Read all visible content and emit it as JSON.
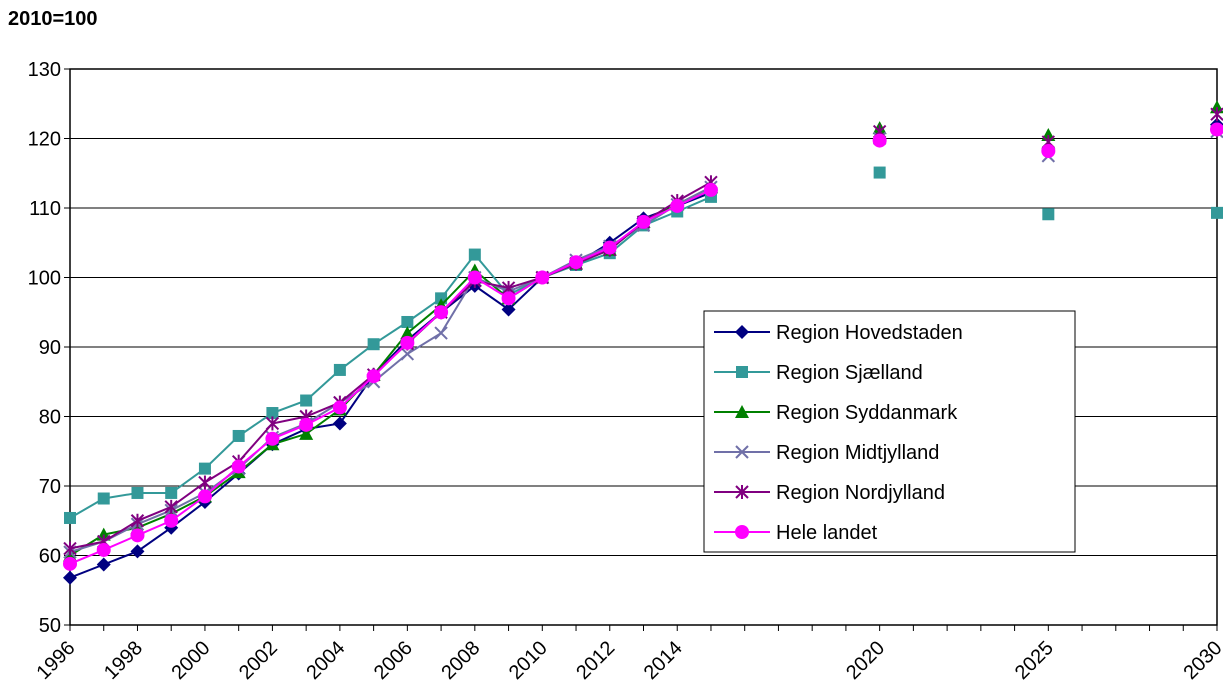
{
  "chart_data": {
    "type": "line",
    "title": "2010=100",
    "xlabel": "",
    "ylabel": "",
    "ylim": [
      50,
      130
    ],
    "yticks": [
      50,
      60,
      70,
      80,
      90,
      100,
      110,
      120,
      130
    ],
    "xlim": [
      1996,
      2030
    ],
    "xticks": [
      1996,
      1998,
      2000,
      2002,
      2004,
      2006,
      2008,
      2010,
      2012,
      2014,
      2020,
      2025,
      2030
    ],
    "grid": "horizontal",
    "legend_position": "center-right",
    "series": [
      {
        "name": "Region Hovedstaden",
        "color": "#000080",
        "marker": "diamond",
        "points": [
          [
            1996,
            56.8
          ],
          [
            1997,
            58.7
          ],
          [
            1998,
            60.6
          ],
          [
            1999,
            64.0
          ],
          [
            2000,
            67.7
          ],
          [
            2001,
            71.8
          ],
          [
            2002,
            76.0
          ],
          [
            2003,
            78.2
          ],
          [
            2004,
            79.0
          ],
          [
            2005,
            86.0
          ],
          [
            2006,
            91.0
          ],
          [
            2007,
            95.0
          ],
          [
            2008,
            98.8
          ],
          [
            2009,
            95.4
          ],
          [
            2010,
            100.0
          ],
          [
            2011,
            102.0
          ],
          [
            2012,
            105.0
          ],
          [
            2013,
            108.5
          ],
          [
            2014,
            110.3
          ],
          [
            2015,
            112.2
          ],
          [
            2020,
            119.8
          ],
          [
            2025,
            118.5
          ],
          [
            2030,
            122.0
          ]
        ]
      },
      {
        "name": "Region Sjælland",
        "color": "#339999",
        "marker": "square",
        "points": [
          [
            1996,
            65.4
          ],
          [
            1997,
            68.2
          ],
          [
            1998,
            69.0
          ],
          [
            1999,
            69.0
          ],
          [
            2000,
            72.5
          ],
          [
            2001,
            77.2
          ],
          [
            2002,
            80.5
          ],
          [
            2003,
            82.3
          ],
          [
            2004,
            86.7
          ],
          [
            2005,
            90.4
          ],
          [
            2006,
            93.6
          ],
          [
            2007,
            97.0
          ],
          [
            2008,
            103.3
          ],
          [
            2009,
            97.5
          ],
          [
            2010,
            100.0
          ],
          [
            2011,
            101.8
          ],
          [
            2012,
            103.5
          ],
          [
            2013,
            107.5
          ],
          [
            2014,
            109.5
          ],
          [
            2015,
            111.6
          ],
          [
            2020,
            115.1
          ],
          [
            2025,
            109.1
          ],
          [
            2030,
            109.3
          ]
        ]
      },
      {
        "name": "Region Syddanmark",
        "color": "#008000",
        "marker": "triangle",
        "points": [
          [
            1996,
            60.0
          ],
          [
            1997,
            63.0
          ],
          [
            1998,
            64.0
          ],
          [
            1999,
            66.0
          ],
          [
            2000,
            68.5
          ],
          [
            2001,
            72.0
          ],
          [
            2002,
            76.0
          ],
          [
            2003,
            77.5
          ],
          [
            2004,
            81.0
          ],
          [
            2005,
            86.0
          ],
          [
            2006,
            92.0
          ],
          [
            2007,
            96.0
          ],
          [
            2008,
            101.0
          ],
          [
            2009,
            97.0
          ],
          [
            2010,
            100.0
          ],
          [
            2011,
            102.0
          ],
          [
            2012,
            104.0
          ],
          [
            2013,
            108.0
          ],
          [
            2014,
            110.5
          ],
          [
            2015,
            113.0
          ],
          [
            2020,
            121.5
          ],
          [
            2025,
            120.5
          ],
          [
            2030,
            124.5
          ]
        ]
      },
      {
        "name": "Region Midtjylland",
        "color": "#7070A8",
        "marker": "x",
        "points": [
          [
            1996,
            60.5
          ],
          [
            1997,
            62.0
          ],
          [
            1998,
            64.5
          ],
          [
            1999,
            66.5
          ],
          [
            2000,
            69.0
          ],
          [
            2001,
            72.5
          ],
          [
            2002,
            77.0
          ],
          [
            2003,
            79.0
          ],
          [
            2004,
            82.0
          ],
          [
            2005,
            85.0
          ],
          [
            2006,
            89.0
          ],
          [
            2007,
            92.0
          ],
          [
            2008,
            100.0
          ],
          [
            2009,
            98.0
          ],
          [
            2010,
            100.0
          ],
          [
            2011,
            102.5
          ],
          [
            2012,
            104.5
          ],
          [
            2013,
            107.5
          ],
          [
            2014,
            110.5
          ],
          [
            2015,
            113.0
          ],
          [
            2020,
            120.0
          ],
          [
            2025,
            117.5
          ],
          [
            2030,
            121.0
          ]
        ]
      },
      {
        "name": "Region Nordjylland",
        "color": "#800080",
        "marker": "star",
        "points": [
          [
            1996,
            61.0
          ],
          [
            1997,
            62.0
          ],
          [
            1998,
            65.0
          ],
          [
            1999,
            67.0
          ],
          [
            2000,
            70.5
          ],
          [
            2001,
            73.5
          ],
          [
            2002,
            79.0
          ],
          [
            2003,
            80.0
          ],
          [
            2004,
            82.0
          ],
          [
            2005,
            86.0
          ],
          [
            2006,
            90.5
          ],
          [
            2007,
            95.0
          ],
          [
            2008,
            99.5
          ],
          [
            2009,
            98.5
          ],
          [
            2010,
            100.0
          ],
          [
            2011,
            102.0
          ],
          [
            2012,
            104.0
          ],
          [
            2013,
            108.0
          ],
          [
            2014,
            111.0
          ],
          [
            2015,
            113.7
          ],
          [
            2020,
            121.0
          ],
          [
            2025,
            119.5
          ],
          [
            2030,
            123.5
          ]
        ]
      },
      {
        "name": "Hele landet",
        "color": "#FF00FF",
        "marker": "circle",
        "points": [
          [
            1996,
            58.8
          ],
          [
            1997,
            60.8
          ],
          [
            1998,
            62.9
          ],
          [
            1999,
            65.0
          ],
          [
            2000,
            68.5
          ],
          [
            2001,
            72.8
          ],
          [
            2002,
            76.8
          ],
          [
            2003,
            78.8
          ],
          [
            2004,
            81.3
          ],
          [
            2005,
            85.8
          ],
          [
            2006,
            90.6
          ],
          [
            2007,
            95.0
          ],
          [
            2008,
            100.0
          ],
          [
            2009,
            97.0
          ],
          [
            2010,
            100.0
          ],
          [
            2011,
            102.2
          ],
          [
            2012,
            104.3
          ],
          [
            2013,
            108.0
          ],
          [
            2014,
            110.3
          ],
          [
            2015,
            112.6
          ],
          [
            2020,
            119.7
          ],
          [
            2025,
            118.2
          ],
          [
            2030,
            121.3
          ]
        ]
      }
    ]
  }
}
